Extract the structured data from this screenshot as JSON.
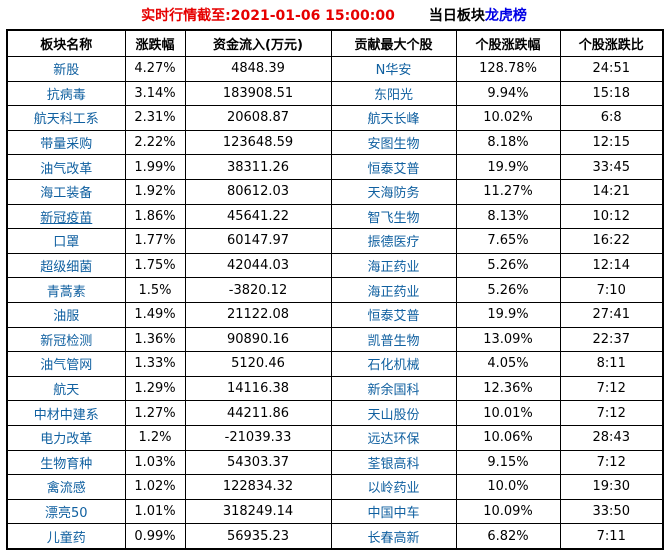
{
  "title": {
    "market_time": "实时行情截至:2021-01-06 15:00:00",
    "prefix": "当日板块",
    "link": "龙虎榜"
  },
  "colors": {
    "title_red": "#e60000",
    "link_blue": "#0000e6",
    "header_link_blue": "#2b53a6",
    "name_blue": "#1060a0",
    "border": "#000000"
  },
  "table": {
    "headers": [
      {
        "label": "板块名称",
        "link": false
      },
      {
        "label": "涨跌幅",
        "link": true
      },
      {
        "label": "资金流入(万元)",
        "link": true
      },
      {
        "label": "贡献最大个股",
        "link": false
      },
      {
        "label": "个股涨跌幅",
        "link": false
      },
      {
        "label": "个股涨跌比",
        "link": false
      }
    ],
    "rows": [
      {
        "sector": "新股",
        "change": "4.27%",
        "inflow": "4848.39",
        "stock": "N华安",
        "stock_change": "128.78%",
        "ratio": "24:51",
        "underline": false
      },
      {
        "sector": "抗病毒",
        "change": "3.14%",
        "inflow": "183908.51",
        "stock": "东阳光",
        "stock_change": "9.94%",
        "ratio": "15:18",
        "underline": false
      },
      {
        "sector": "航天科工系",
        "change": "2.31%",
        "inflow": "20608.87",
        "stock": "航天长峰",
        "stock_change": "10.02%",
        "ratio": "6:8",
        "underline": false
      },
      {
        "sector": "带量采购",
        "change": "2.22%",
        "inflow": "123648.59",
        "stock": "安图生物",
        "stock_change": "8.18%",
        "ratio": "12:15",
        "underline": false
      },
      {
        "sector": "油气改革",
        "change": "1.99%",
        "inflow": "38311.26",
        "stock": "恒泰艾普",
        "stock_change": "19.9%",
        "ratio": "33:45",
        "underline": false
      },
      {
        "sector": "海工装备",
        "change": "1.92%",
        "inflow": "80612.03",
        "stock": "天海防务",
        "stock_change": "11.27%",
        "ratio": "14:21",
        "underline": false
      },
      {
        "sector": "新冠疫苗",
        "change": "1.86%",
        "inflow": "45641.22",
        "stock": "智飞生物",
        "stock_change": "8.13%",
        "ratio": "10:12",
        "underline": true
      },
      {
        "sector": "口罩",
        "change": "1.77%",
        "inflow": "60147.97",
        "stock": "振德医疗",
        "stock_change": "7.65%",
        "ratio": "16:22",
        "underline": false
      },
      {
        "sector": "超级细菌",
        "change": "1.75%",
        "inflow": "42044.03",
        "stock": "海正药业",
        "stock_change": "5.26%",
        "ratio": "12:14",
        "underline": false
      },
      {
        "sector": "青蒿素",
        "change": "1.5%",
        "inflow": "-3820.12",
        "stock": "海正药业",
        "stock_change": "5.26%",
        "ratio": "7:10",
        "underline": false
      },
      {
        "sector": "油服",
        "change": "1.49%",
        "inflow": "21122.08",
        "stock": "恒泰艾普",
        "stock_change": "19.9%",
        "ratio": "27:41",
        "underline": false
      },
      {
        "sector": "新冠检测",
        "change": "1.36%",
        "inflow": "90890.16",
        "stock": "凯普生物",
        "stock_change": "13.09%",
        "ratio": "22:37",
        "underline": false
      },
      {
        "sector": "油气管网",
        "change": "1.33%",
        "inflow": "5120.46",
        "stock": "石化机械",
        "stock_change": "4.05%",
        "ratio": "8:11",
        "underline": false
      },
      {
        "sector": "航天",
        "change": "1.29%",
        "inflow": "14116.38",
        "stock": "新余国科",
        "stock_change": "12.36%",
        "ratio": "7:12",
        "underline": false
      },
      {
        "sector": "中材中建系",
        "change": "1.27%",
        "inflow": "44211.86",
        "stock": "天山股份",
        "stock_change": "10.01%",
        "ratio": "7:12",
        "underline": false
      },
      {
        "sector": "电力改革",
        "change": "1.2%",
        "inflow": "-21039.33",
        "stock": "远达环保",
        "stock_change": "10.06%",
        "ratio": "28:43",
        "underline": false
      },
      {
        "sector": "生物育种",
        "change": "1.03%",
        "inflow": "54303.37",
        "stock": "荃银高科",
        "stock_change": "9.15%",
        "ratio": "7:12",
        "underline": false
      },
      {
        "sector": "禽流感",
        "change": "1.02%",
        "inflow": "122834.32",
        "stock": "以岭药业",
        "stock_change": "10.0%",
        "ratio": "19:30",
        "underline": false
      },
      {
        "sector": "漂亮50",
        "change": "1.01%",
        "inflow": "318249.14",
        "stock": "中国中车",
        "stock_change": "10.09%",
        "ratio": "33:50",
        "underline": false
      },
      {
        "sector": "儿童药",
        "change": "0.99%",
        "inflow": "56935.23",
        "stock": "长春高新",
        "stock_change": "6.82%",
        "ratio": "7:11",
        "underline": false
      }
    ]
  }
}
